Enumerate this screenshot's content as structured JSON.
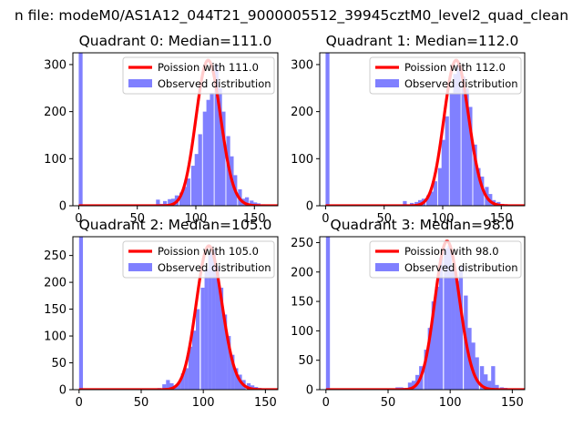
{
  "suptitle": "n file: modeM0/AS1A12_044T21_9000005512_39945cztM0_level2_quad_clean",
  "colors": {
    "hist": "#8080ff",
    "fit": "#ff0000",
    "axes": "#000000",
    "legend_border": "#cccccc"
  },
  "chart_data": [
    {
      "type": "bar",
      "title": "Quadrant 0: Median=111.0",
      "xlim": [
        -5,
        170
      ],
      "ylim": [
        0,
        325
      ],
      "xticks": [
        0,
        50,
        100,
        150
      ],
      "yticks": [
        0,
        100,
        200,
        300
      ],
      "legend_position": "top-right",
      "fit": {
        "label": "Poission with 111.0",
        "mean": 111.0
      },
      "hist_label": "Observed distribution",
      "hist": {
        "bin_width": 3.3,
        "bins": [
          [
            0,
            325
          ],
          [
            66,
            13
          ],
          [
            69,
            4
          ],
          [
            72,
            10
          ],
          [
            76,
            14
          ],
          [
            79,
            15
          ],
          [
            82,
            22
          ],
          [
            86,
            28
          ],
          [
            89,
            40
          ],
          [
            92,
            58
          ],
          [
            96,
            85
          ],
          [
            99,
            110
          ],
          [
            102,
            152
          ],
          [
            106,
            200
          ],
          [
            109,
            225
          ],
          [
            112,
            240
          ],
          [
            116,
            300
          ],
          [
            119,
            250
          ],
          [
            122,
            200
          ],
          [
            126,
            148
          ],
          [
            129,
            105
          ],
          [
            132,
            65
          ],
          [
            136,
            35
          ],
          [
            139,
            15
          ],
          [
            142,
            18
          ],
          [
            146,
            11
          ],
          [
            149,
            7
          ],
          [
            152,
            5
          ],
          [
            156,
            3
          ],
          [
            159,
            2
          ]
        ]
      }
    },
    {
      "type": "bar",
      "title": "Quadrant 1: Median=112.0",
      "xlim": [
        -5,
        170
      ],
      "ylim": [
        0,
        325
      ],
      "xticks": [
        0,
        50,
        100,
        150
      ],
      "yticks": [
        0,
        100,
        200,
        300
      ],
      "legend_position": "top-right",
      "fit": {
        "label": "Poission with 112.0",
        "mean": 112.0
      },
      "hist_label": "Observed distribution",
      "hist": {
        "bin_width": 3.3,
        "bins": [
          [
            0,
            325
          ],
          [
            66,
            10
          ],
          [
            72,
            6
          ],
          [
            76,
            8
          ],
          [
            79,
            12
          ],
          [
            82,
            15
          ],
          [
            86,
            22
          ],
          [
            89,
            30
          ],
          [
            92,
            52
          ],
          [
            96,
            80
          ],
          [
            99,
            140
          ],
          [
            102,
            190
          ],
          [
            106,
            240
          ],
          [
            109,
            280
          ],
          [
            112,
            300
          ],
          [
            116,
            275
          ],
          [
            119,
            250
          ],
          [
            122,
            210
          ],
          [
            126,
            130
          ],
          [
            129,
            80
          ],
          [
            132,
            62
          ],
          [
            136,
            40
          ],
          [
            139,
            25
          ],
          [
            142,
            12
          ],
          [
            146,
            8
          ],
          [
            149,
            4
          ],
          [
            152,
            3
          ],
          [
            156,
            2
          ]
        ]
      }
    },
    {
      "type": "bar",
      "title": "Quadrant 2: Median=105.0",
      "xlim": [
        -5,
        160
      ],
      "ylim": [
        0,
        285
      ],
      "xticks": [
        0,
        50,
        100,
        150
      ],
      "yticks": [
        0,
        50,
        100,
        150,
        200,
        250
      ],
      "legend_position": "top-right",
      "fit": {
        "label": "Poission with 105.0",
        "mean": 105.0
      },
      "hist_label": "Observed distribution",
      "hist": {
        "bin_width": 3.1,
        "bins": [
          [
            0,
            285
          ],
          [
            60,
            2
          ],
          [
            63,
            3
          ],
          [
            67,
            10
          ],
          [
            70,
            18
          ],
          [
            73,
            12
          ],
          [
            76,
            8
          ],
          [
            79,
            14
          ],
          [
            82,
            30
          ],
          [
            85,
            40
          ],
          [
            88,
            80
          ],
          [
            91,
            110
          ],
          [
            94,
            150
          ],
          [
            98,
            190
          ],
          [
            101,
            225
          ],
          [
            104,
            255
          ],
          [
            107,
            260
          ],
          [
            110,
            230
          ],
          [
            113,
            190
          ],
          [
            116,
            140
          ],
          [
            119,
            100
          ],
          [
            122,
            65
          ],
          [
            125,
            40
          ],
          [
            128,
            28
          ],
          [
            131,
            18
          ],
          [
            135,
            12
          ],
          [
            138,
            8
          ],
          [
            141,
            5
          ],
          [
            144,
            3
          ],
          [
            147,
            2
          ],
          [
            150,
            1
          ]
        ]
      }
    },
    {
      "type": "bar",
      "title": "Quadrant 3: Median=98.0",
      "xlim": [
        -5,
        160
      ],
      "ylim": [
        0,
        260
      ],
      "xticks": [
        0,
        50,
        100,
        150
      ],
      "yticks": [
        0,
        50,
        100,
        150,
        200,
        250
      ],
      "legend_position": "top-right",
      "fit": {
        "label": "Poission with 98.0",
        "mean": 98.0
      },
      "hist_label": "Observed distribution",
      "hist": {
        "bin_width": 3.2,
        "bins": [
          [
            0,
            260
          ],
          [
            56,
            4
          ],
          [
            59,
            4
          ],
          [
            62,
            3
          ],
          [
            66,
            12
          ],
          [
            69,
            15
          ],
          [
            72,
            25
          ],
          [
            75,
            40
          ],
          [
            79,
            68
          ],
          [
            82,
            105
          ],
          [
            85,
            150
          ],
          [
            88,
            175
          ],
          [
            91,
            225
          ],
          [
            95,
            240
          ],
          [
            98,
            245
          ],
          [
            101,
            205
          ],
          [
            104,
            185
          ],
          [
            107,
            210
          ],
          [
            111,
            160
          ],
          [
            114,
            105
          ],
          [
            117,
            80
          ],
          [
            120,
            55
          ],
          [
            124,
            40
          ],
          [
            127,
            26
          ],
          [
            130,
            15
          ],
          [
            133,
            40
          ],
          [
            136,
            8
          ],
          [
            140,
            4
          ],
          [
            143,
            3
          ],
          [
            146,
            2
          ]
        ]
      }
    }
  ]
}
